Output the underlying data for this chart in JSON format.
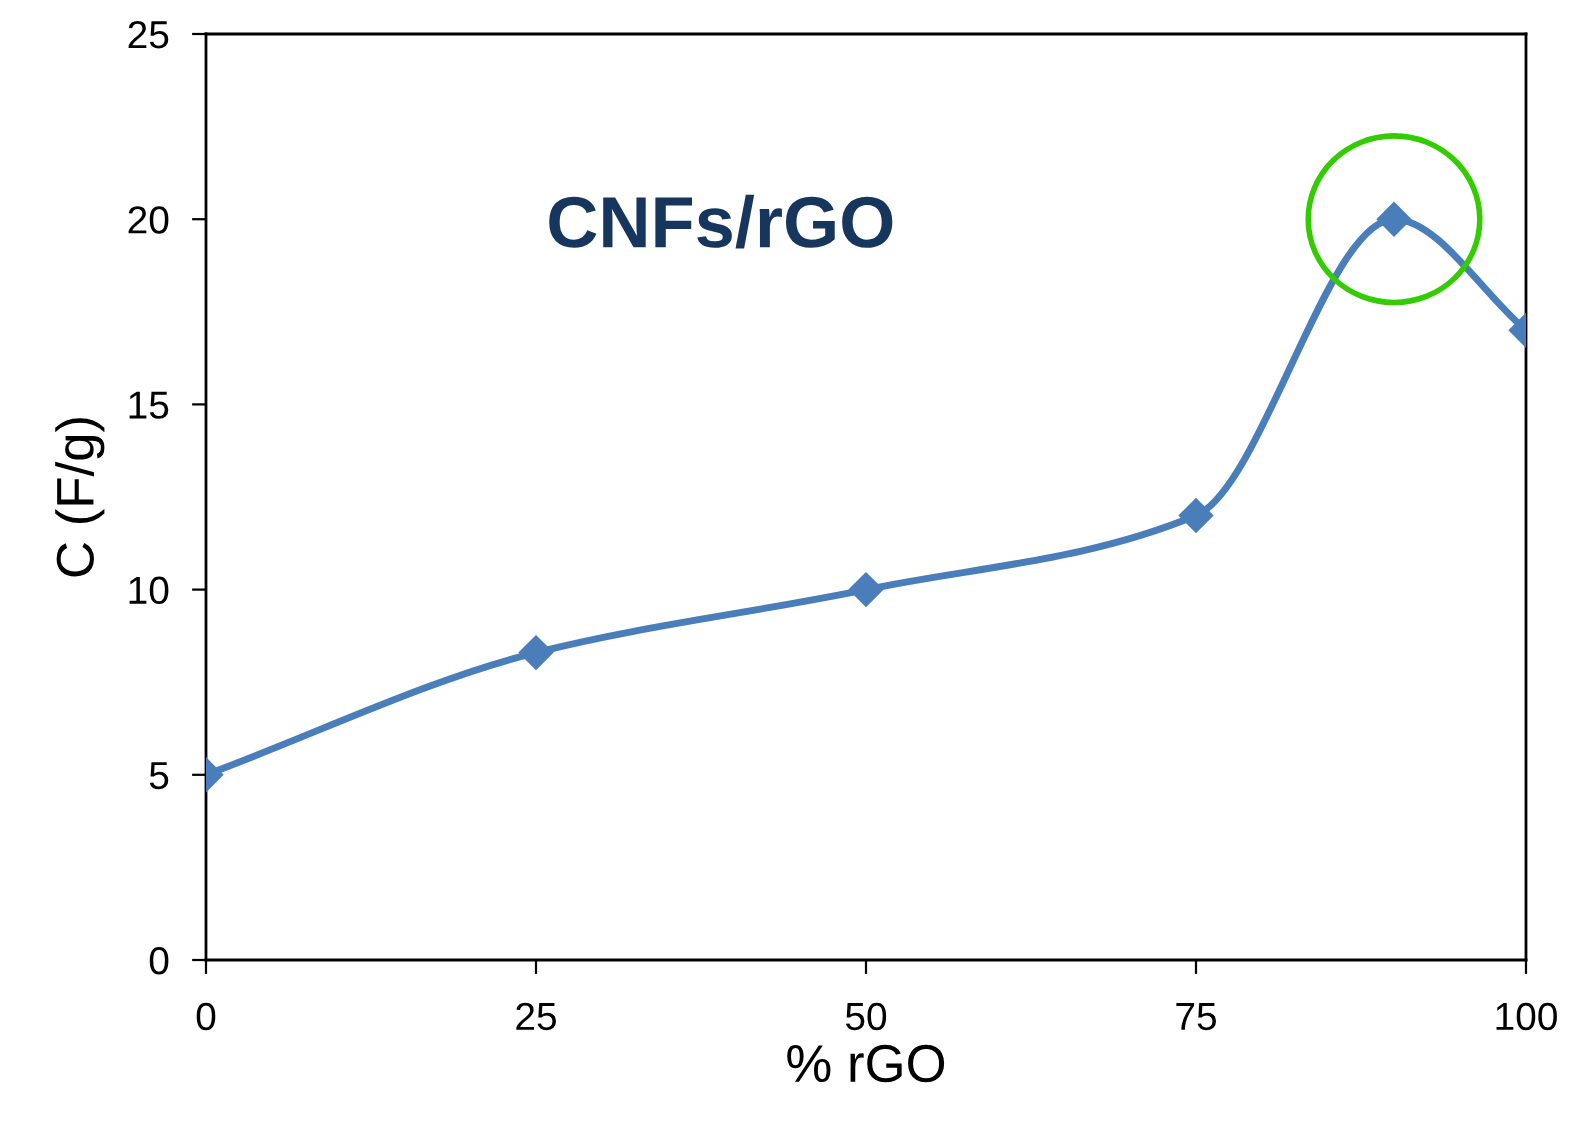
{
  "chart_data": {
    "type": "line",
    "title": "CNFs/rGO",
    "xlabel": "% rGO",
    "ylabel": "C (F/g)",
    "x": [
      0,
      25,
      50,
      75,
      90,
      100
    ],
    "series": [
      {
        "color": "#4a7ebb",
        "values": [
          5,
          8.3,
          10,
          12,
          20,
          17
        ]
      }
    ],
    "xlim": [
      0,
      100
    ],
    "xticks": [
      0,
      25,
      50,
      75,
      100
    ],
    "ylim": [
      0,
      25
    ],
    "yticks": [
      0,
      5,
      10,
      15,
      20,
      25
    ],
    "marker": "diamond",
    "line_style": "solid",
    "grid": false,
    "legend": false
  }
}
